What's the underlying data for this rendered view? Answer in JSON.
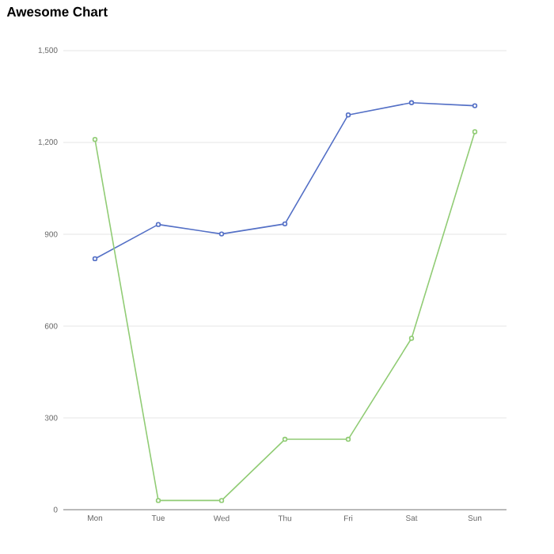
{
  "chart_data": {
    "type": "line",
    "title": "Awesome Chart",
    "categories": [
      "Mon",
      "Tue",
      "Wed",
      "Thu",
      "Fri",
      "Sat",
      "Sun"
    ],
    "series": [
      {
        "color": "#5470c6",
        "values": [
          820,
          932,
          901,
          934,
          1290,
          1330,
          1320
        ]
      },
      {
        "color": "#91cc75",
        "values": [
          1210,
          30,
          30,
          230,
          230,
          560,
          1235
        ]
      }
    ],
    "ylim": [
      0,
      1500
    ],
    "yticks": [
      {
        "value": 0,
        "label": "0"
      },
      {
        "value": 300,
        "label": "300"
      },
      {
        "value": 600,
        "label": "600"
      },
      {
        "value": 900,
        "label": "900"
      },
      {
        "value": 1200,
        "label": "1,200"
      },
      {
        "value": 1500,
        "label": "1,500"
      }
    ],
    "grid": "y",
    "marker": "circle"
  }
}
